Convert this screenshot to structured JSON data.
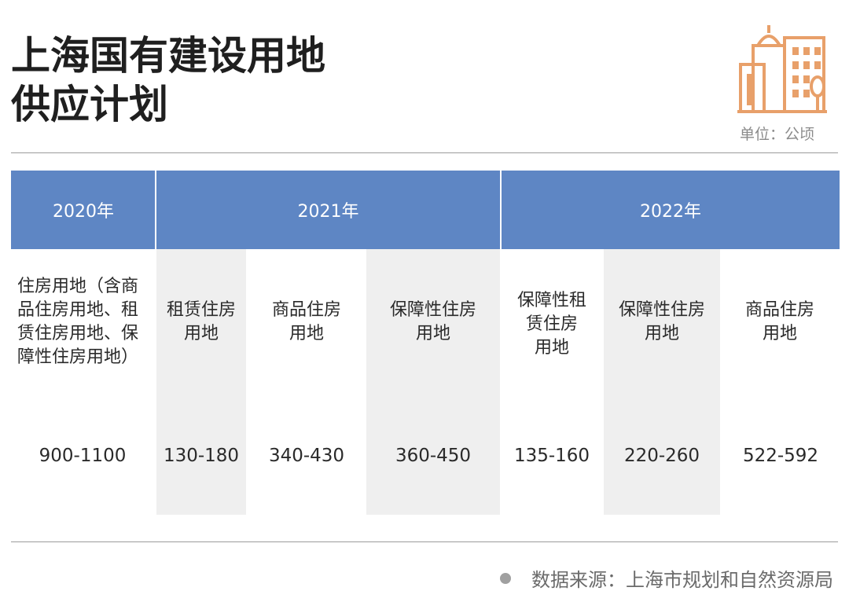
{
  "title": {
    "line1": "上海国有建设用地",
    "line2": "供应计划"
  },
  "unit_label": "单位：公顷",
  "logo": {
    "icon": "buildings-icon",
    "color": "#e8a06a"
  },
  "colors": {
    "header_bg": "#5e86c4",
    "shade": "#efefef",
    "text": "#2a2a2a"
  },
  "years": [
    "2020年",
    "2021年",
    "2022年"
  ],
  "columns": [
    {
      "lines": [
        "住房用地（含商",
        "品住房用地、租",
        "赁住房用地、保",
        "障性住房用地）"
      ],
      "value": "900-1100"
    },
    {
      "lines": [
        "租赁住房",
        "用地"
      ],
      "value": "130-180"
    },
    {
      "lines": [
        "商品住房",
        "用地"
      ],
      "value": "340-430"
    },
    {
      "lines": [
        "保障性住房",
        "用地"
      ],
      "value": "360-450"
    },
    {
      "lines": [
        "保障性租",
        "赁住房",
        "用地"
      ],
      "value": "135-160"
    },
    {
      "lines": [
        "保障性住房",
        "用地"
      ],
      "value": "220-260"
    },
    {
      "lines": [
        "商品住房",
        "用地"
      ],
      "value": "522-592"
    }
  ],
  "source": "数据来源：上海市规划和自然资源局"
}
